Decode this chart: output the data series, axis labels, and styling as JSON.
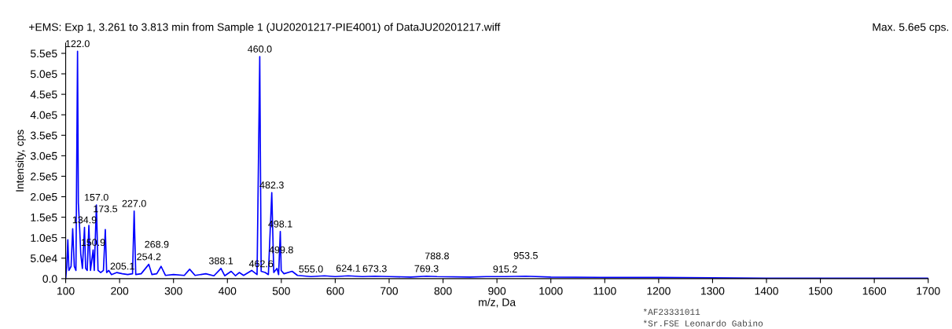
{
  "chart_data": {
    "type": "line",
    "title": "+EMS: Exp 1, 3.261 to 3.813 min from Sample 1 (JU20201217-PIE4001) of DataJU20201217.wiff",
    "xlabel": "m/z, Da",
    "ylabel": "Intensity, cps",
    "xlim": [
      100,
      1700
    ],
    "xticks": [
      100,
      200,
      300,
      400,
      500,
      600,
      700,
      800,
      900,
      1000,
      1100,
      1200,
      1300,
      1400,
      1500,
      1600,
      1700
    ],
    "ylim": [
      0,
      575000
    ],
    "yticks": [
      {
        "value": 0,
        "label": "0.0"
      },
      {
        "value": 50000,
        "label": "5.0e4"
      },
      {
        "value": 100000,
        "label": "1.0e5"
      },
      {
        "value": 150000,
        "label": "1.5e5"
      },
      {
        "value": 200000,
        "label": "2.0e5"
      },
      {
        "value": 250000,
        "label": "2.5e5"
      },
      {
        "value": 300000,
        "label": "3.0e5"
      },
      {
        "value": 350000,
        "label": "3.5e5"
      },
      {
        "value": 400000,
        "label": "4.0e5"
      },
      {
        "value": 450000,
        "label": "4.5e5"
      },
      {
        "value": 500000,
        "label": "5.0e5"
      },
      {
        "value": 550000,
        "label": "5.5e5"
      }
    ],
    "grid": false,
    "legend": false,
    "marker": "none",
    "line_style": "solid",
    "series": [
      {
        "color": "#0000ff",
        "x": [
          100,
          102,
          104,
          106,
          110,
          113,
          116,
          119,
          122,
          123.5,
          126,
          128,
          131,
          134.9,
          137,
          140,
          143,
          146,
          150.9,
          153,
          157,
          160,
          165,
          170,
          173.5,
          176,
          180,
          185,
          195,
          205.1,
          215,
          224,
          227,
          230,
          240,
          254.2,
          260,
          268.9,
          277,
          285,
          300,
          320,
          330,
          340,
          360,
          375,
          388.1,
          395,
          407,
          415,
          422,
          430,
          445,
          455,
          460,
          462.6,
          470,
          476,
          482.3,
          486,
          492,
          495,
          498.1,
          499.8,
          505,
          520,
          530,
          555,
          580,
          600,
          624.1,
          650,
          673.3,
          700,
          740,
          769.3,
          788.8,
          850,
          880,
          915.2,
          953.5,
          1000,
          1100,
          1200,
          1300,
          1400,
          1500,
          1600,
          1700
        ],
        "values": [
          0,
          30000,
          95000,
          20000,
          30000,
          122000,
          30000,
          20000,
          555000,
          185000,
          120000,
          60000,
          25000,
          125000,
          25000,
          20000,
          130000,
          20000,
          70000,
          20000,
          180000,
          20000,
          15000,
          20000,
          120000,
          15000,
          20000,
          10000,
          15000,
          12000,
          10000,
          12000,
          165000,
          10000,
          12000,
          35000,
          10000,
          12000,
          30000,
          8000,
          10000,
          8000,
          23000,
          8000,
          12000,
          7000,
          25000,
          7000,
          18000,
          7000,
          15000,
          8000,
          20000,
          10000,
          542000,
          18000,
          15000,
          10000,
          210000,
          15000,
          25000,
          10000,
          115000,
          20000,
          12000,
          18000,
          8000,
          5000,
          7000,
          5000,
          7000,
          5000,
          6000,
          5000,
          4000,
          6000,
          5000,
          4000,
          5000,
          5000,
          6000,
          4000,
          3000,
          3000,
          2000,
          1000,
          1000,
          1000,
          1000
        ]
      }
    ],
    "annotations": [
      {
        "text": "122.0",
        "x": 122,
        "y": 555000
      },
      {
        "text": "460.0",
        "x": 460,
        "y": 542000
      },
      {
        "text": "482.3",
        "x": 482.3,
        "y": 210000
      },
      {
        "text": "498.1",
        "x": 498.1,
        "y": 115000
      },
      {
        "text": "157.0",
        "x": 157,
        "y": 180000
      },
      {
        "text": "227.0",
        "x": 227,
        "y": 165000
      },
      {
        "text": "134.9",
        "x": 134.9,
        "y": 125000
      },
      {
        "text": "150.9",
        "x": 150.9,
        "y": 70000
      },
      {
        "text": "173.5",
        "x": 173.5,
        "y": 120000
      },
      {
        "text": "254.2",
        "x": 254.2,
        "y": 35000
      },
      {
        "text": "205.1",
        "x": 205.1,
        "y": 12000
      },
      {
        "text": "268.9",
        "x": 268.9,
        "y": 12000
      },
      {
        "text": "388.1",
        "x": 388.1,
        "y": 25000
      },
      {
        "text": "462.6",
        "x": 462.6,
        "y": 18000
      },
      {
        "text": "499.8",
        "x": 499.8,
        "y": 20000
      },
      {
        "text": "555.0",
        "x": 555,
        "y": 5000
      },
      {
        "text": "624.1",
        "x": 624.1,
        "y": 7000
      },
      {
        "text": "673.3",
        "x": 673.3,
        "y": 6000
      },
      {
        "text": "769.3",
        "x": 769.3,
        "y": 6000
      },
      {
        "text": "788.8",
        "x": 788.8,
        "y": 5000
      },
      {
        "text": "915.2",
        "x": 915.2,
        "y": 5000
      },
      {
        "text": "953.5",
        "x": 953.5,
        "y": 6000
      },
      "Max. 5.6e5 cps.",
      "*AF23331011",
      "*Sr.FSE Leonardo Gabino"
    ]
  }
}
